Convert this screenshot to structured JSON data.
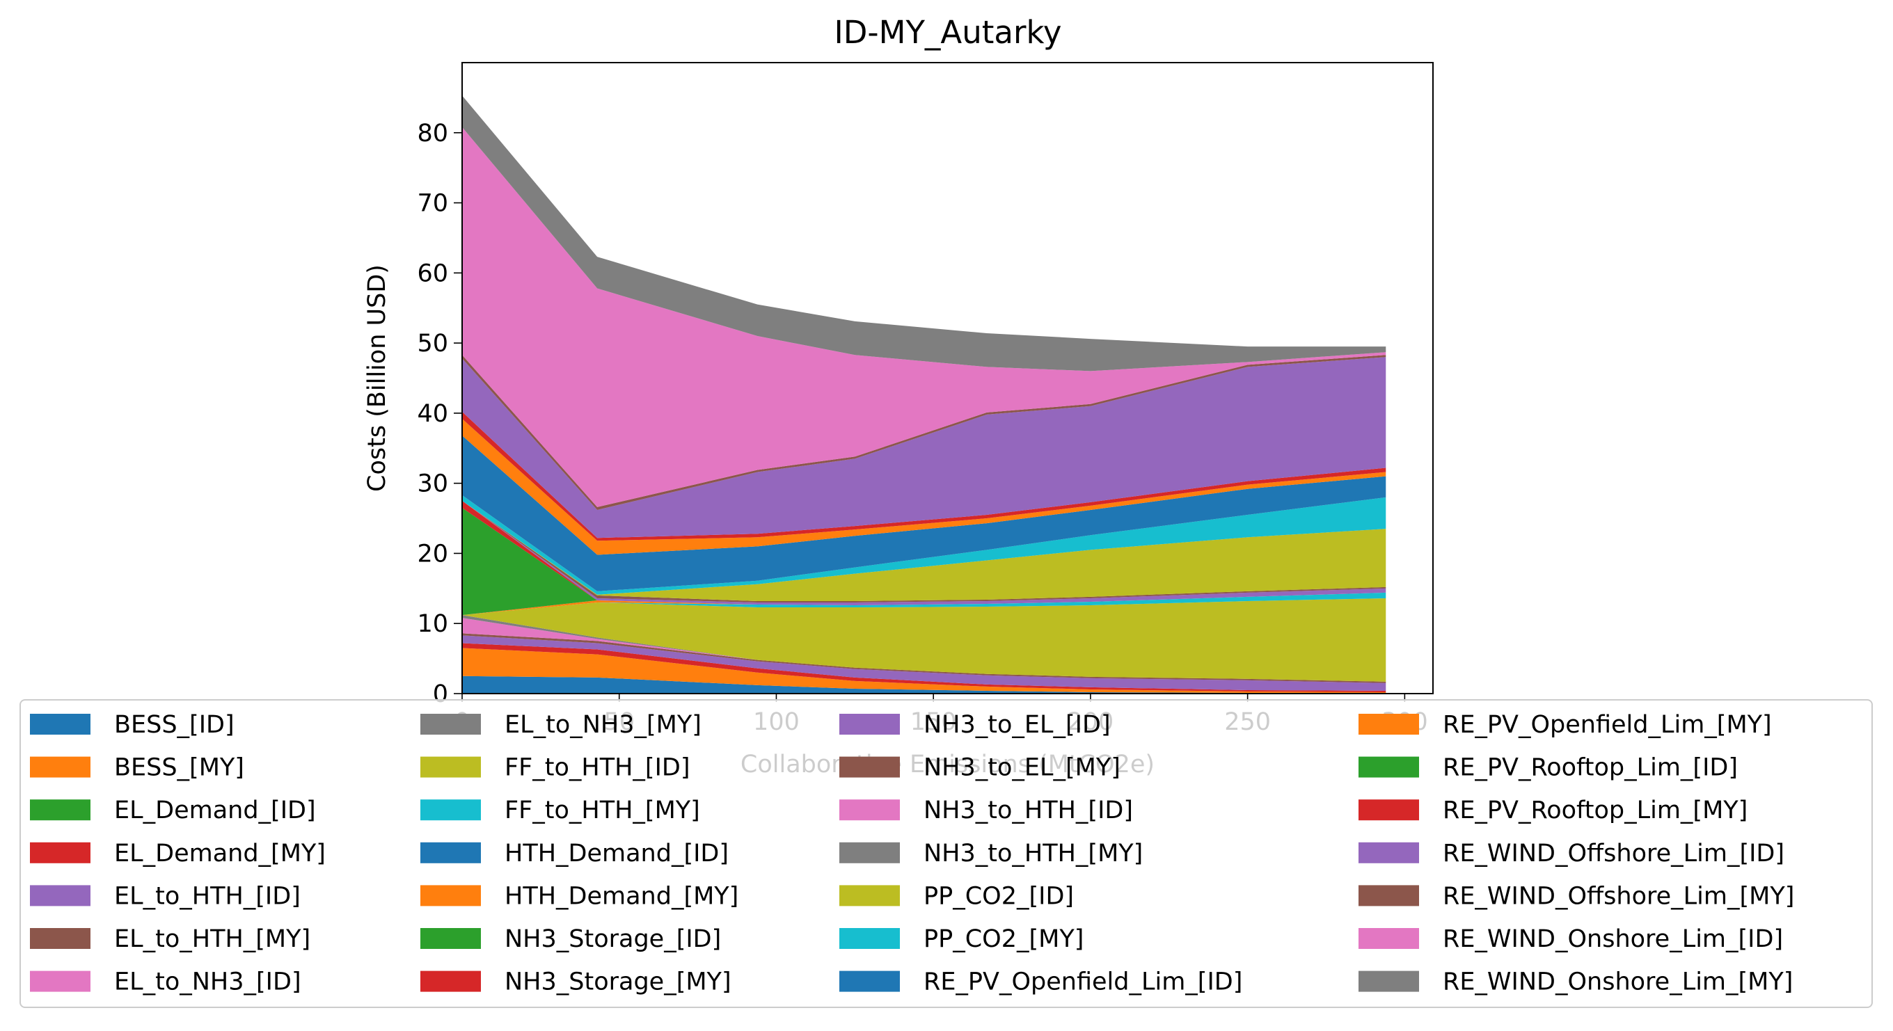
{
  "chart_data": {
    "type": "stacked_area",
    "title": "ID-MY_Autarky",
    "x_label": "Collaborative Emissions (MtCO2e)",
    "y_label": "Costs (Billion USD)",
    "x": [
      0,
      43,
      94,
      125,
      167,
      200,
      250,
      294
    ],
    "xlim": [
      0,
      309
    ],
    "ylim": [
      0,
      90
    ],
    "xticks": [
      0,
      50,
      100,
      150,
      200,
      250,
      300
    ],
    "yticks": [
      0,
      10,
      20,
      30,
      40,
      50,
      60,
      70,
      80
    ],
    "legend": "lower center",
    "series": [
      {
        "name": "BESS_[ID]",
        "color": "#1f77b4",
        "values": [
          2.5,
          2.3,
          1.2,
          0.7,
          0.4,
          0.2,
          0.1,
          0.1
        ]
      },
      {
        "name": "BESS_[MY]",
        "color": "#ff7f0e",
        "values": [
          4,
          3.3,
          1.8,
          1.1,
          0.6,
          0.4,
          0.2,
          0.1
        ]
      },
      {
        "name": "EL_Demand_[ID]",
        "color": "#2ca02c",
        "values": [
          0,
          0,
          0,
          0,
          0,
          0,
          0,
          0
        ]
      },
      {
        "name": "EL_Demand_[MY]",
        "color": "#d62728",
        "values": [
          0.7,
          0.7,
          0.6,
          0.5,
          0.3,
          0.3,
          0.2,
          0.2
        ]
      },
      {
        "name": "EL_to_HTH_[ID]",
        "color": "#9467bd",
        "values": [
          1.1,
          0.9,
          1.0,
          1.2,
          1.3,
          1.3,
          1.4,
          1.1
        ]
      },
      {
        "name": "EL_to_HTH_[MY]",
        "color": "#8c564b",
        "values": [
          0.3,
          0.3,
          0.2,
          0.2,
          0.2,
          0.2,
          0.2,
          0.2
        ]
      },
      {
        "name": "EL_to_NH3_[ID]",
        "color": "#e377c2",
        "values": [
          2.2,
          0.3,
          0,
          0,
          0,
          0,
          0,
          0
        ]
      },
      {
        "name": "EL_to_NH3_[MY]",
        "color": "#7f7f7f",
        "values": [
          0.4,
          0.2,
          0,
          0,
          0,
          0,
          0,
          0
        ]
      },
      {
        "name": "FF_to_HTH_[ID]",
        "color": "#bcbd22",
        "values": [
          0,
          5,
          7.5,
          8.6,
          9.6,
          10.2,
          11.1,
          11.9
        ]
      },
      {
        "name": "FF_to_HTH_[MY]",
        "color": "#17becf",
        "values": [
          0,
          0,
          0.4,
          0.3,
          0.4,
          0.5,
          0.6,
          0.8
        ]
      },
      {
        "name": "HTH_Demand_[ID]",
        "color": "#1f77b4",
        "values": [
          0,
          0,
          0,
          0,
          0,
          0,
          0,
          0
        ]
      },
      {
        "name": "HTH_Demand_[MY]",
        "color": "#ff7f0e",
        "values": [
          0,
          0.3,
          0,
          0,
          0,
          0,
          0,
          0
        ]
      },
      {
        "name": "NH3_Storage_[ID]",
        "color": "#2ca02c",
        "values": [
          15.3,
          0,
          0,
          0,
          0,
          0,
          0,
          0
        ]
      },
      {
        "name": "NH3_Storage_[MY]",
        "color": "#d62728",
        "values": [
          1,
          0,
          0,
          0,
          0,
          0,
          0,
          0
        ]
      },
      {
        "name": "NH3_to_EL_[ID]",
        "color": "#9467bd",
        "values": [
          0,
          0.3,
          0.3,
          0.4,
          0.4,
          0.5,
          0.6,
          0.6
        ]
      },
      {
        "name": "NH3_to_EL_[MY]",
        "color": "#8c564b",
        "values": [
          0,
          0.4,
          0.2,
          0.2,
          0.2,
          0.2,
          0.2,
          0.2
        ]
      },
      {
        "name": "NH3_to_HTH_[ID]",
        "color": "#e377c2",
        "values": [
          0,
          0,
          0,
          0,
          0,
          0,
          0,
          0
        ]
      },
      {
        "name": "NH3_to_HTH_[MY]",
        "color": "#7f7f7f",
        "values": [
          0,
          0,
          0,
          0,
          0,
          0,
          0,
          0
        ]
      },
      {
        "name": "PP_CO2_[ID]",
        "color": "#bcbd22",
        "values": [
          0,
          0.1,
          2.4,
          3.9,
          5.6,
          6.7,
          7.7,
          8.3
        ]
      },
      {
        "name": "PP_CO2_[MY]",
        "color": "#17becf",
        "values": [
          0.8,
          0.5,
          0.5,
          0.9,
          1.5,
          2.1,
          3.2,
          4.5
        ]
      },
      {
        "name": "RE_PV_Openfield_Lim_[ID]",
        "color": "#1f77b4",
        "values": [
          8.5,
          5.2,
          4.9,
          4.5,
          3.8,
          3.6,
          3.7,
          3
        ]
      },
      {
        "name": "RE_PV_Openfield_Lim_[MY]",
        "color": "#ff7f0e",
        "values": [
          2.4,
          2,
          1.3,
          0.9,
          0.7,
          0.6,
          0.6,
          0.6
        ]
      },
      {
        "name": "RE_PV_Rooftop_Lim_[ID]",
        "color": "#2ca02c",
        "values": [
          0,
          0,
          0,
          0,
          0,
          0,
          0,
          0
        ]
      },
      {
        "name": "RE_PV_Rooftop_Lim_[MY]",
        "color": "#d62728",
        "values": [
          1,
          0.4,
          0.5,
          0.5,
          0.5,
          0.5,
          0.5,
          0.6
        ]
      },
      {
        "name": "RE_WIND_Offshore_Lim_[ID]",
        "color": "#9467bd",
        "values": [
          7.6,
          4,
          8.8,
          9.6,
          14.3,
          13.7,
          16.3,
          15.8
        ]
      },
      {
        "name": "RE_WIND_Offshore_Lim_[MY]",
        "color": "#8c564b",
        "values": [
          0.5,
          0.4,
          0.3,
          0.3,
          0.3,
          0.3,
          0.3,
          0.3
        ]
      },
      {
        "name": "RE_WIND_Onshore_Lim_[ID]",
        "color": "#e377c2",
        "values": [
          32.5,
          31.2,
          19.1,
          14.5,
          6.5,
          4.7,
          0.4,
          0.4
        ]
      },
      {
        "name": "RE_WIND_Onshore_Lim_[MY]",
        "color": "#7f7f7f",
        "values": [
          4.5,
          4.5,
          4.5,
          4.8,
          4.8,
          4.6,
          2.2,
          0.8
        ]
      }
    ]
  }
}
